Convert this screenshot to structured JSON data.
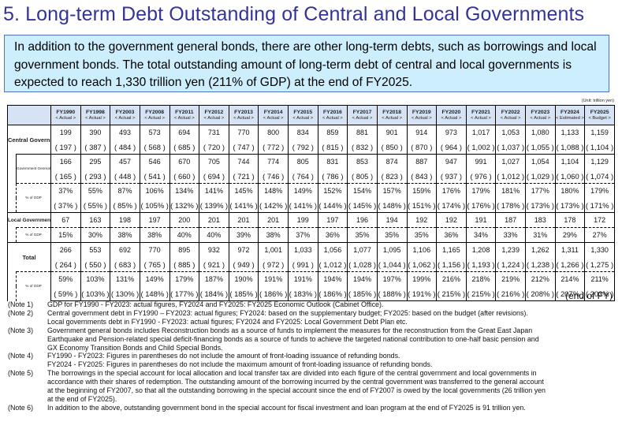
{
  "title": "5. Long-term Debt Outstanding of Central and Local Governments",
  "intro": "In addition to the government general bonds, there are other long-term debts, such as borrowings and local government bonds. The total outstanding amount of long-term debt of central and local governments is expected to reach 1,330 trillion yen (211% of GDP) at the end of FY2025.",
  "unit": "(Unit: trillion yen)",
  "end_of_fy": "(end of FY)",
  "table": {
    "columns": [
      {
        "fy": "FY1990",
        "status": "< Actual >"
      },
      {
        "fy": "FY1998",
        "status": "< Actual >"
      },
      {
        "fy": "FY2003",
        "status": "< Actual >"
      },
      {
        "fy": "FY2008",
        "status": "< Actual >"
      },
      {
        "fy": "FY2011",
        "status": "< Actual >"
      },
      {
        "fy": "FY2012",
        "status": "< Actual >"
      },
      {
        "fy": "FY2013",
        "status": "< Actual >"
      },
      {
        "fy": "FY2014",
        "status": "< Actual >"
      },
      {
        "fy": "FY2015",
        "status": "< Actual >"
      },
      {
        "fy": "FY2016",
        "status": "< Actual >"
      },
      {
        "fy": "FY2017",
        "status": "< Actual >"
      },
      {
        "fy": "FY2018",
        "status": "< Actual >"
      },
      {
        "fy": "FY2019",
        "status": "< Actual >"
      },
      {
        "fy": "FY2020",
        "status": "< Actual >"
      },
      {
        "fy": "FY2021",
        "status": "< Actual >"
      },
      {
        "fy": "FY2022",
        "status": "< Actual >"
      },
      {
        "fy": "FY2023",
        "status": "< Actual >"
      },
      {
        "fy": "FY2024",
        "status": "< Estimated >"
      },
      {
        "fy": "FY2025",
        "status": "< Budget >"
      }
    ],
    "labels": {
      "central": "Central Government",
      "ggb": "Government General Bonds",
      "pct_gdp": "% of GDP",
      "local": "Local Governments",
      "total": "Total"
    },
    "rows": {
      "central": [
        "199",
        "390",
        "493",
        "573",
        "694",
        "731",
        "770",
        "800",
        "834",
        "859",
        "881",
        "901",
        "914",
        "973",
        "1,017",
        "1,053",
        "1,080",
        "1,133",
        "1,159"
      ],
      "central_paren": [
        "( 197 )",
        "( 387 )",
        "( 484 )",
        "( 568 )",
        "( 685 )",
        "( 720 )",
        "( 747 )",
        "( 772 )",
        "( 792 )",
        "( 815 )",
        "( 832 )",
        "( 850 )",
        "( 870 )",
        "( 964 )",
        "( 1,002 )",
        "( 1,037 )",
        "( 1,055 )",
        "( 1,088 )",
        "( 1,104 )"
      ],
      "ggb": [
        "166",
        "295",
        "457",
        "546",
        "670",
        "705",
        "744",
        "774",
        "805",
        "831",
        "853",
        "874",
        "887",
        "947",
        "991",
        "1,027",
        "1,054",
        "1,104",
        "1,129"
      ],
      "ggb_paren": [
        "( 165 )",
        "( 293 )",
        "( 448 )",
        "( 541 )",
        "( 660 )",
        "( 694 )",
        "( 721 )",
        "( 746 )",
        "( 764 )",
        "( 786 )",
        "( 805 )",
        "( 823 )",
        "( 843 )",
        "( 937 )",
        "( 976 )",
        "( 1,012 )",
        "( 1,029 )",
        "( 1,060 )",
        "( 1,074 )"
      ],
      "ggb_pct": [
        "37%",
        "55%",
        "87%",
        "106%",
        "134%",
        "141%",
        "145%",
        "148%",
        "149%",
        "152%",
        "154%",
        "157%",
        "159%",
        "176%",
        "179%",
        "181%",
        "177%",
        "180%",
        "179%"
      ],
      "ggb_pct_paren": [
        "( 37% )",
        "( 55% )",
        "( 85% )",
        "( 105% )",
        "( 132% )",
        "( 139% )",
        "( 141% )",
        "( 142% )",
        "( 141% )",
        "( 144% )",
        "( 145% )",
        "( 148% )",
        "( 151% )",
        "( 174% )",
        "( 176% )",
        "( 178% )",
        "( 173% )",
        "( 173% )",
        "( 171% )"
      ],
      "local": [
        "67",
        "163",
        "198",
        "197",
        "200",
        "201",
        "201",
        "201",
        "199",
        "197",
        "196",
        "194",
        "192",
        "192",
        "191",
        "187",
        "183",
        "178",
        "172"
      ],
      "local_pct": [
        "15%",
        "30%",
        "38%",
        "38%",
        "40%",
        "40%",
        "39%",
        "38%",
        "37%",
        "36%",
        "35%",
        "35%",
        "35%",
        "36%",
        "34%",
        "33%",
        "31%",
        "29%",
        "27%"
      ],
      "total": [
        "266",
        "553",
        "692",
        "770",
        "895",
        "932",
        "972",
        "1,001",
        "1,033",
        "1,056",
        "1,077",
        "1,095",
        "1,106",
        "1,165",
        "1,208",
        "1,239",
        "1,262",
        "1,311",
        "1,330"
      ],
      "total_paren": [
        "( 264 )",
        "( 550 )",
        "( 683 )",
        "( 765 )",
        "( 885 )",
        "( 921 )",
        "( 949 )",
        "( 972 )",
        "( 991 )",
        "( 1,012 )",
        "( 1,028 )",
        "( 1,044 )",
        "( 1,062 )",
        "( 1,156 )",
        "( 1,193 )",
        "( 1,224 )",
        "( 1,238 )",
        "( 1,266 )",
        "( 1,275 )"
      ],
      "total_pct": [
        "59%",
        "103%",
        "131%",
        "149%",
        "179%",
        "187%",
        "190%",
        "191%",
        "191%",
        "194%",
        "194%",
        "197%",
        "199%",
        "216%",
        "218%",
        "219%",
        "212%",
        "214%",
        "211%"
      ],
      "total_pct_paren": [
        "( 59% )",
        "( 103% )",
        "( 130% )",
        "( 148% )",
        "( 177% )",
        "( 184% )",
        "( 185% )",
        "( 186% )",
        "( 183% )",
        "( 186% )",
        "( 185% )",
        "( 188% )",
        "( 191% )",
        "( 215% )",
        "( 215% )",
        "( 216% )",
        "( 208% )",
        "( 207% )",
        "( 203% )"
      ]
    }
  },
  "notes": [
    {
      "label": "(Note 1)",
      "lines": [
        "GDP for FY1990 - FY2023: actual figures, FY2024 and FY2025: FY2025 Economic Outlook (Cabinet Office)."
      ]
    },
    {
      "label": "(Note 2)",
      "lines": [
        "Central government debt in FY1990 – FY2023: actual figures; FY2024: based on the supplementary budget; FY2025: based on the budget (after revisions).",
        "Local governments debt in FY1990 - FY2023: actual figures; FY2024 and FY2025: Local Government Debt Plan etc."
      ]
    },
    {
      "label": "(Note 3)",
      "lines": [
        "Government general bonds includes Reconstruction bonds as a source of funds to implement the measures for the reconstruction from the Great East Japan",
        "Earthquake and Pension-related special deficit-financing bonds as a source of funds to achieve the targeted national contribution to one-half basic pension and",
        "GX Economy Transition Bonds and Child Special Bonds."
      ]
    },
    {
      "label": "(Note 4)",
      "lines": [
        "FY1990 - FY2023: Figures in parentheses do not include the amount of front-loading issuance of refunding bonds.",
        "FY2024 - FY2025: Figures in parentheses do not include the maximum amount of front-loading issuance of refunding bonds."
      ]
    },
    {
      "label": "(Note 5)",
      "lines": [
        "The borrowings in the special account for local allocation and local transfer tax are divided into each figure of the central government and local governments in",
        "accordance with their shares of redemption. The outstanding amount of the borrowing incurred by the central government was transferred to the general account",
        "at the beginning of FY2007, so that all the outstanding borrowing in the special account since the end of FY2007 is owed by the local governments (26 trillion yen",
        "at the end of FY2025)."
      ]
    },
    {
      "label": "(Note 6)",
      "lines": [
        "In addition to the above, outstanding government bond in the special account for fiscal investment and loan program at the end of FY2025 is 91 trillion yen."
      ]
    }
  ]
}
